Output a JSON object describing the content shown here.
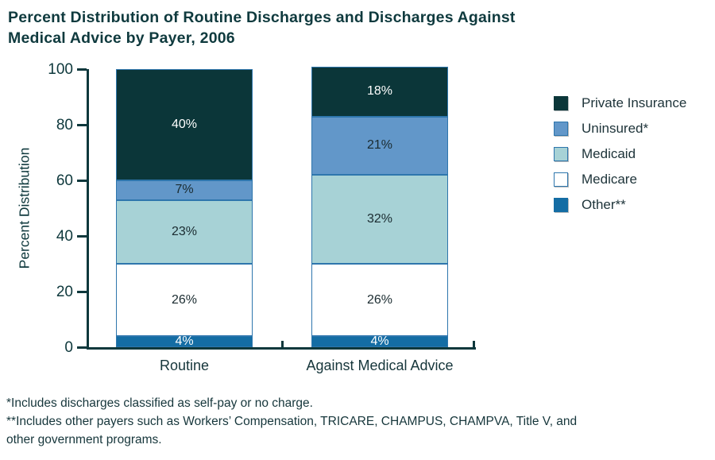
{
  "title": {
    "line1": "Percent Distribution of Routine Discharges and Discharges Against",
    "line2": "Medical Advice by Payer, 2006"
  },
  "chart_data": {
    "type": "stacked_bar",
    "title": "Percent Distribution of Routine Discharges and Discharges Against Medical Advice by Payer, 2006",
    "ylabel": "Percent Distribution",
    "xlabel": "",
    "ylim": [
      0,
      100
    ],
    "yticks": [
      0,
      20,
      40,
      60,
      80,
      100
    ],
    "categories": [
      "Routine",
      "Against Medical Advice"
    ],
    "value_suffix": "%",
    "series": [
      {
        "name": "Other**",
        "values": [
          4,
          4
        ],
        "color": "#146da4",
        "label_color": "#ffffff",
        "swatch_border": "#146da4"
      },
      {
        "name": "Medicare",
        "values": [
          26,
          26
        ],
        "color": "#ffffff",
        "label_color": "#1a2b30",
        "swatch_border": "#2e76ad"
      },
      {
        "name": "Medicaid",
        "values": [
          23,
          32
        ],
        "color": "#a7d2d6",
        "label_color": "#1a2b30",
        "swatch_border": "#2e76ad"
      },
      {
        "name": "Uninsured*",
        "values": [
          7,
          21
        ],
        "color": "#6297c9",
        "label_color": "#1a2b30",
        "swatch_border": "#2e76ad"
      },
      {
        "name": "Private Insurance",
        "values": [
          40,
          18
        ],
        "color": "#0b3639",
        "label_color": "#ffffff",
        "swatch_border": "#0b3639"
      }
    ],
    "legend_position": "right",
    "legend_order_top_to_bottom": [
      "Private Insurance",
      "Uninsured*",
      "Medicaid",
      "Medicare",
      "Other**"
    ],
    "grid": false
  },
  "footnotes": {
    "lines": [
      "*Includes discharges classified as self-pay or no charge.",
      "**Includes other payers such as Workers’ Compensation, TRICARE, CHAMPUS, CHAMPVA, Title V, and",
      "other government programs."
    ]
  },
  "colors": {
    "background": "#ffffff",
    "title_text": "#0f3a3e",
    "axis": "#0e383c",
    "segment_border": "#2e76ad",
    "tick_label_text": "#0e383c",
    "category_label_text": "#16363b",
    "legend_text": "#1d3339",
    "footnote_text": "#16363b"
  }
}
